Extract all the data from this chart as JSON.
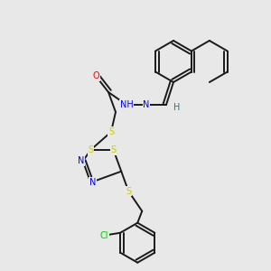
{
  "background_color": "#e8e8e8",
  "bond_color": "#1a1a1a",
  "atom_colors": {
    "O": "#ff0000",
    "N": "#0000ee",
    "S": "#cccc00",
    "Cl": "#00cc00",
    "H": "#008888",
    "C": "#1a1a1a"
  },
  "figsize": [
    3.0,
    3.0
  ],
  "dpi": 100,
  "lw": 1.4,
  "fs": 7.0
}
